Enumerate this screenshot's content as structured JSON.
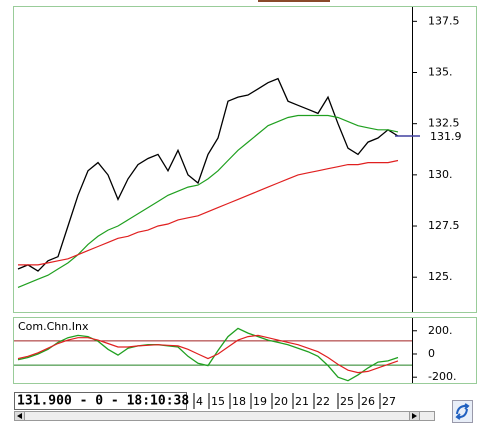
{
  "chart_data": [
    {
      "type": "line",
      "grid": false,
      "xlim": [
        -0.4,
        39.4
      ],
      "xticks": [
        {
          "value": 17.8,
          "label": "4"
        },
        {
          "value": 19.3,
          "label": "15"
        },
        {
          "value": 21.4,
          "label": "18"
        },
        {
          "value": 23.5,
          "label": "19"
        },
        {
          "value": 25.6,
          "label": "20"
        },
        {
          "value": 27.7,
          "label": "21"
        },
        {
          "value": 29.8,
          "label": "22"
        },
        {
          "value": 32.2,
          "label": "25"
        },
        {
          "value": 34.3,
          "label": "26"
        },
        {
          "value": 36.4,
          "label": "27"
        }
      ],
      "ylim": [
        123.3,
        138.2
      ],
      "yticks": [
        {
          "value": 137.5,
          "label": "137.5"
        },
        {
          "value": 135,
          "label": "135."
        },
        {
          "value": 132.5,
          "label": "132.5"
        },
        {
          "value": 130,
          "label": "130."
        },
        {
          "value": 127.5,
          "label": "127.5"
        },
        {
          "value": 125,
          "label": "125."
        }
      ],
      "last_price": 131.9,
      "last_price_color": "#4040a0",
      "status": "131.900 - 0 - 18:10:38",
      "x": [
        0,
        1,
        2,
        3,
        4,
        5,
        6,
        7,
        8,
        9,
        10,
        11,
        12,
        13,
        14,
        15,
        16,
        17,
        18,
        19,
        20,
        21,
        22,
        23,
        24,
        25,
        26,
        27,
        28,
        29,
        30,
        31,
        32,
        33,
        34,
        35,
        36,
        37,
        38
      ],
      "series": [
        {
          "color": "#000000",
          "values": [
            125.4,
            125.6,
            125.3,
            125.8,
            126.0,
            127.5,
            129.0,
            130.2,
            130.6,
            130.0,
            128.8,
            129.8,
            130.5,
            130.8,
            131.0,
            130.2,
            131.2,
            130.0,
            129.6,
            131.0,
            131.8,
            133.6,
            133.8,
            133.9,
            134.2,
            134.5,
            134.7,
            133.6,
            133.4,
            133.2,
            133.0,
            133.8,
            132.5,
            131.3,
            131.0,
            131.6,
            131.8,
            132.2,
            131.9
          ]
        },
        {
          "color": "#20a020",
          "values": [
            124.5,
            124.7,
            124.9,
            125.1,
            125.4,
            125.7,
            126.1,
            126.6,
            127.0,
            127.3,
            127.5,
            127.8,
            128.1,
            128.4,
            128.7,
            129.0,
            129.2,
            129.4,
            129.5,
            129.8,
            130.2,
            130.7,
            131.2,
            131.6,
            132.0,
            132.4,
            132.6,
            132.8,
            132.9,
            132.9,
            132.9,
            132.9,
            132.8,
            132.6,
            132.4,
            132.3,
            132.2,
            132.2,
            132.1
          ]
        },
        {
          "color": "#e02020",
          "values": [
            125.6,
            125.6,
            125.6,
            125.7,
            125.8,
            125.9,
            126.1,
            126.3,
            126.5,
            126.7,
            126.9,
            127.0,
            127.2,
            127.3,
            127.5,
            127.6,
            127.8,
            127.9,
            128.0,
            128.2,
            128.4,
            128.6,
            128.8,
            129.0,
            129.2,
            129.4,
            129.6,
            129.8,
            130.0,
            130.1,
            130.2,
            130.3,
            130.4,
            130.5,
            130.5,
            130.6,
            130.6,
            130.6,
            130.7
          ]
        }
      ]
    },
    {
      "type": "line",
      "title": "Com.Chn.Inx",
      "xlim": [
        -0.4,
        39.4
      ],
      "ylim": [
        -250,
        310
      ],
      "yticks": [
        {
          "value": 200,
          "label": "200."
        },
        0,
        {
          "value": -200,
          "label": "-200."
        }
      ],
      "levels": [
        {
          "value": 113,
          "color": "#a02020"
        },
        {
          "value": -96,
          "color": "#208020"
        }
      ],
      "x": [
        0,
        1,
        2,
        3,
        4,
        5,
        6,
        7,
        8,
        9,
        10,
        11,
        12,
        13,
        14,
        15,
        16,
        17,
        18,
        19,
        20,
        21,
        22,
        23,
        24,
        25,
        26,
        27,
        28,
        29,
        30,
        31,
        32,
        33,
        34,
        35,
        36,
        37,
        38
      ],
      "series": [
        {
          "color": "#20a020",
          "values": [
            -50,
            -30,
            0,
            40,
            100,
            140,
            160,
            150,
            110,
            40,
            -10,
            50,
            70,
            80,
            80,
            70,
            60,
            -20,
            -80,
            -100,
            30,
            150,
            220,
            180,
            150,
            120,
            100,
            80,
            50,
            20,
            -20,
            -100,
            -200,
            -230,
            -180,
            -120,
            -70,
            -60,
            -30
          ]
        },
        {
          "color": "#e02020",
          "values": [
            -40,
            -20,
            10,
            50,
            90,
            120,
            140,
            140,
            120,
            90,
            60,
            60,
            70,
            75,
            80,
            75,
            70,
            40,
            0,
            -40,
            0,
            60,
            120,
            150,
            160,
            140,
            120,
            100,
            80,
            50,
            20,
            -30,
            -90,
            -140,
            -160,
            -150,
            -120,
            -90,
            -60
          ]
        }
      ]
    }
  ]
}
